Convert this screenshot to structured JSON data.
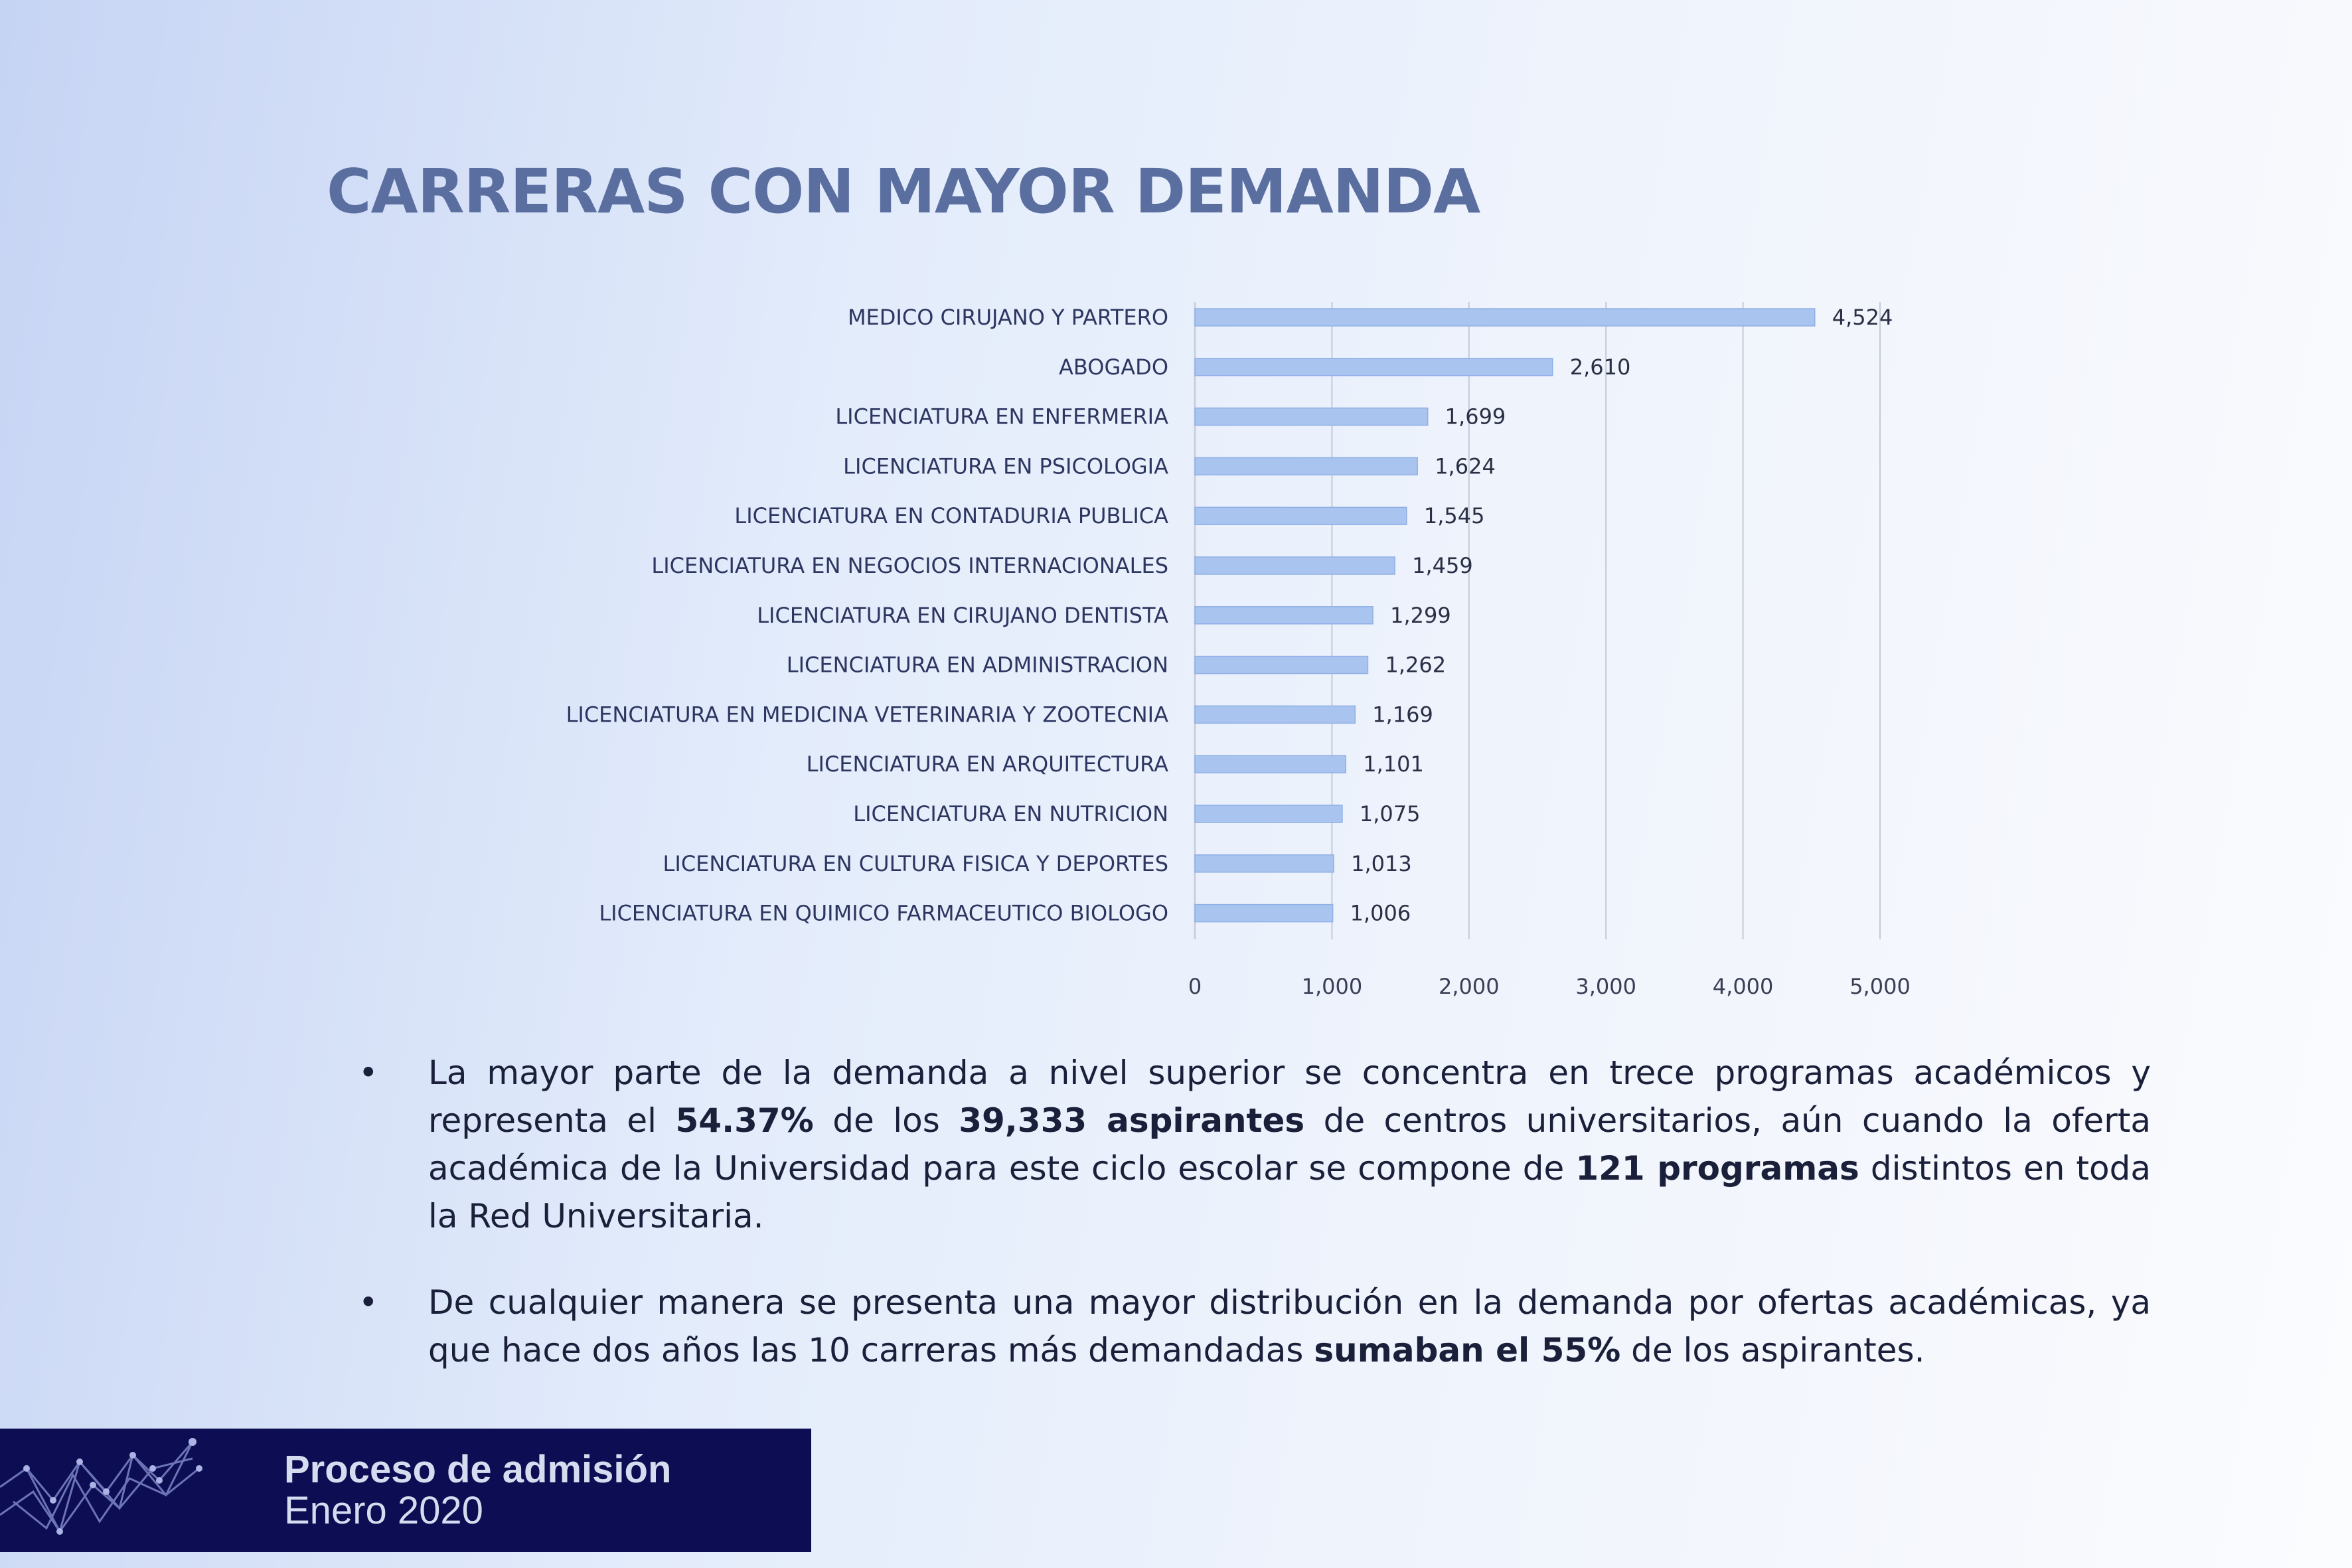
{
  "slide": {
    "title": "CARRERAS CON MAYOR DEMANDA"
  },
  "chart_data": {
    "type": "bar",
    "orientation": "horizontal",
    "categories": [
      "MEDICO CIRUJANO Y PARTERO",
      "ABOGADO",
      "LICENCIATURA EN ENFERMERIA",
      "LICENCIATURA EN PSICOLOGIA",
      "LICENCIATURA EN CONTADURIA PUBLICA",
      "LICENCIATURA EN NEGOCIOS INTERNACIONALES",
      "LICENCIATURA  EN CIRUJANO DENTISTA",
      "LICENCIATURA EN ADMINISTRACION",
      "LICENCIATURA EN MEDICINA VETERINARIA Y ZOOTECNIA",
      "LICENCIATURA  EN ARQUITECTURA",
      "LICENCIATURA EN NUTRICION",
      "LICENCIATURA EN CULTURA FISICA Y DEPORTES",
      "LICENCIATURA EN QUIMICO FARMACEUTICO BIOLOGO"
    ],
    "values": [
      4524,
      2610,
      1699,
      1624,
      1545,
      1459,
      1299,
      1262,
      1169,
      1101,
      1075,
      1013,
      1006
    ],
    "value_labels": [
      "4,524",
      "2,610",
      "1,699",
      "1,624",
      "1,545",
      "1,459",
      "1,299",
      "1,262",
      "1,169",
      "1,101",
      "1,075",
      "1,013",
      "1,006"
    ],
    "xlim": [
      0,
      5000
    ],
    "xticks": [
      0,
      1000,
      2000,
      3000,
      4000,
      5000
    ],
    "xtick_labels": [
      "0",
      "1,000",
      "2,000",
      "3,000",
      "4,000",
      "5,000"
    ],
    "grid": true,
    "legend": false,
    "bar_color": "#a9c4ee"
  },
  "bullets": [
    {
      "parts": [
        {
          "text": "La mayor parte de la demanda a nivel superior se concentra en trece programas académicos y representa el ",
          "bold": false
        },
        {
          "text": "54.37%",
          "bold": true
        },
        {
          "text": " de los ",
          "bold": false
        },
        {
          "text": "39,333 aspirantes",
          "bold": true
        },
        {
          "text": " de centros universitarios, aún cuando la oferta académica de la Universidad para este ciclo escolar se compone de ",
          "bold": false
        },
        {
          "text": "121 programas",
          "bold": true
        },
        {
          "text": " distintos en toda la Red Universitaria.",
          "bold": false
        }
      ]
    },
    {
      "parts": [
        {
          "text": "De cualquier manera se presenta una mayor distribución en la demanda por ofertas académicas, ya que hace dos años las 10 carreras más demandadas ",
          "bold": false
        },
        {
          "text": "sumaban el 55%",
          "bold": true
        },
        {
          "text": " de los aspirantes.",
          "bold": false
        }
      ]
    }
  ],
  "bullet_symbol": "•",
  "footer": {
    "title": "Proceso de admisión",
    "subtitle": "Enero 2020"
  }
}
